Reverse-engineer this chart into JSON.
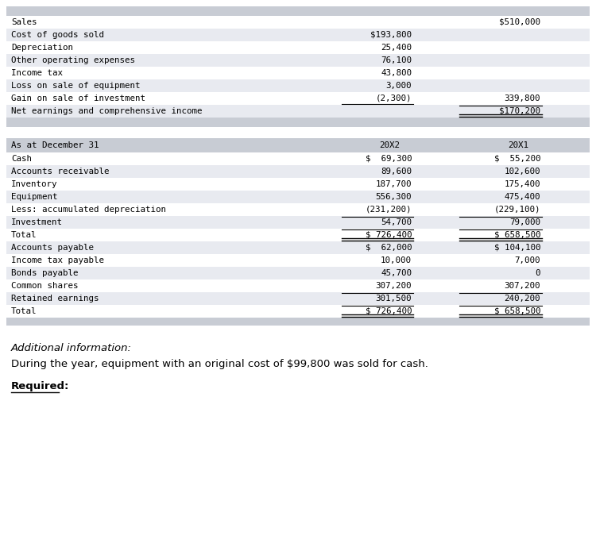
{
  "bg_color": "#ffffff",
  "header_color": "#c8ccd4",
  "row_alt_color": "#e8eaf0",
  "row_white": "#ffffff",
  "font_color": "#000000",
  "income_rows": [
    {
      "label": "Sales",
      "col1": "",
      "col2": "$510,000",
      "bg": "#ffffff"
    },
    {
      "label": "Cost of goods sold",
      "col1": "$193,800",
      "col2": "",
      "bg": "#e8eaf0"
    },
    {
      "label": "Depreciation",
      "col1": "25,400",
      "col2": "",
      "bg": "#ffffff"
    },
    {
      "label": "Other operating expenses",
      "col1": "76,100",
      "col2": "",
      "bg": "#e8eaf0"
    },
    {
      "label": "Income tax",
      "col1": "43,800",
      "col2": "",
      "bg": "#ffffff"
    },
    {
      "label": "Loss on sale of equipment",
      "col1": "3,000",
      "col2": "",
      "bg": "#e8eaf0"
    },
    {
      "label": "Gain on sale of investment",
      "col1": "(2,300)",
      "col2": "339,800",
      "bg": "#ffffff",
      "line_under_col1": true
    },
    {
      "label": "Net earnings and comprehensive income",
      "col1": "",
      "col2": "$170,200",
      "bg": "#e8eaf0",
      "line_above_col2": true,
      "double_under_col2": true
    }
  ],
  "balance_header": {
    "label": "As at December 31",
    "col1": "20X2",
    "col2": "20X1",
    "bg": "#c8ccd4"
  },
  "balance_rows": [
    {
      "label": "Cash",
      "col1": "$  69,300",
      "col2": "$  55,200",
      "bg": "#ffffff",
      "line_above_col1": false,
      "line_above_col2": false,
      "double_under_col1": false,
      "double_under_col2": false
    },
    {
      "label": "Accounts receivable",
      "col1": "89,600",
      "col2": "102,600",
      "bg": "#e8eaf0",
      "line_above_col1": false,
      "line_above_col2": false,
      "double_under_col1": false,
      "double_under_col2": false
    },
    {
      "label": "Inventory",
      "col1": "187,700",
      "col2": "175,400",
      "bg": "#ffffff",
      "line_above_col1": false,
      "line_above_col2": false,
      "double_under_col1": false,
      "double_under_col2": false
    },
    {
      "label": "Equipment",
      "col1": "556,300",
      "col2": "475,400",
      "bg": "#e8eaf0",
      "line_above_col1": false,
      "line_above_col2": false,
      "double_under_col1": false,
      "double_under_col2": false
    },
    {
      "label": "Less: accumulated depreciation",
      "col1": "(231,200)",
      "col2": "(229,100)",
      "bg": "#ffffff",
      "line_above_col1": false,
      "line_above_col2": false,
      "double_under_col1": false,
      "double_under_col2": false
    },
    {
      "label": "Investment",
      "col1": "54,700",
      "col2": "79,000",
      "bg": "#e8eaf0",
      "line_above_col1": true,
      "line_above_col2": true,
      "double_under_col1": false,
      "double_under_col2": false
    },
    {
      "label": "Total",
      "col1": "$ 726,400",
      "col2": "$ 658,500",
      "bg": "#ffffff",
      "line_above_col1": true,
      "line_above_col2": true,
      "double_under_col1": true,
      "double_under_col2": true
    },
    {
      "label": "Accounts payable",
      "col1": "$  62,000",
      "col2": "$ 104,100",
      "bg": "#e8eaf0",
      "line_above_col1": false,
      "line_above_col2": false,
      "double_under_col1": false,
      "double_under_col2": false
    },
    {
      "label": "Income tax payable",
      "col1": "10,000",
      "col2": "7,000",
      "bg": "#ffffff",
      "line_above_col1": false,
      "line_above_col2": false,
      "double_under_col1": false,
      "double_under_col2": false
    },
    {
      "label": "Bonds payable",
      "col1": "45,700",
      "col2": "0",
      "bg": "#e8eaf0",
      "line_above_col1": false,
      "line_above_col2": false,
      "double_under_col1": false,
      "double_under_col2": false
    },
    {
      "label": "Common shares",
      "col1": "307,200",
      "col2": "307,200",
      "bg": "#ffffff",
      "line_above_col1": false,
      "line_above_col2": false,
      "double_under_col1": false,
      "double_under_col2": false
    },
    {
      "label": "Retained earnings",
      "col1": "301,500",
      "col2": "240,200",
      "bg": "#e8eaf0",
      "line_above_col1": true,
      "line_above_col2": true,
      "double_under_col1": false,
      "double_under_col2": false
    },
    {
      "label": "Total",
      "col1": "$ 726,400",
      "col2": "$ 658,500",
      "bg": "#ffffff",
      "line_above_col1": true,
      "line_above_col2": true,
      "double_under_col1": true,
      "double_under_col2": true
    }
  ],
  "additional_info_label": "Additional information:",
  "additional_info_text": "During the year, equipment with an original cost of $99,800 was sold for cash.",
  "required_label": "Required:"
}
